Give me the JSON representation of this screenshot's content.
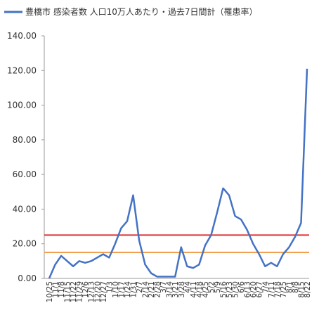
{
  "chart_data": {
    "type": "line",
    "categories": [
      "10/25",
      "11/1",
      "11/8",
      "11/15",
      "11/22",
      "11/29",
      "12/6",
      "12/13",
      "12/20",
      "12/27",
      "1/3",
      "1/10",
      "1/17",
      "1/24",
      "1/31",
      "2/7",
      "2/14",
      "2/21",
      "2/28",
      "3/7",
      "3/14",
      "3/21",
      "3/28",
      "4/4",
      "4/11",
      "4/18",
      "4/25",
      "5/2",
      "5/9",
      "5/16",
      "5/23",
      "5/30",
      "6/6",
      "6/13",
      "6/20",
      "6/27",
      "7/4",
      "7/11",
      "7/18",
      "7/25",
      "8/1",
      "8/8",
      "8/15",
      "8/22"
    ],
    "series": [
      {
        "name": "豊橋市 感染者数 人口10万人あたり・過去7日間計（罹患率）",
        "color": "#4472c4",
        "values": [
          0,
          8,
          13,
          10,
          7,
          10,
          9,
          10,
          12,
          14,
          12,
          20,
          29,
          33,
          48,
          22,
          8,
          3,
          1,
          1,
          1,
          1,
          18,
          7,
          6,
          8,
          19,
          25,
          38,
          52,
          48,
          36,
          34,
          28,
          20,
          14,
          7,
          9,
          7,
          14,
          18,
          24,
          32,
          121
        ]
      }
    ],
    "reference_lines": [
      {
        "value": 25,
        "color": "#e03030"
      },
      {
        "value": 15,
        "color": "#f0a050"
      }
    ],
    "ylim": [
      0,
      140
    ],
    "yticks": [
      {
        "value": 0,
        "label": "0.00"
      },
      {
        "value": 20,
        "label": "20.00"
      },
      {
        "value": 40,
        "label": "40.00"
      },
      {
        "value": 60,
        "label": "60.00"
      },
      {
        "value": 80,
        "label": "80.00"
      },
      {
        "value": 100,
        "label": "100.00"
      },
      {
        "value": 120,
        "label": "120.00"
      },
      {
        "value": 140,
        "label": "140.00"
      }
    ],
    "grid": false,
    "legend": "top-left"
  }
}
